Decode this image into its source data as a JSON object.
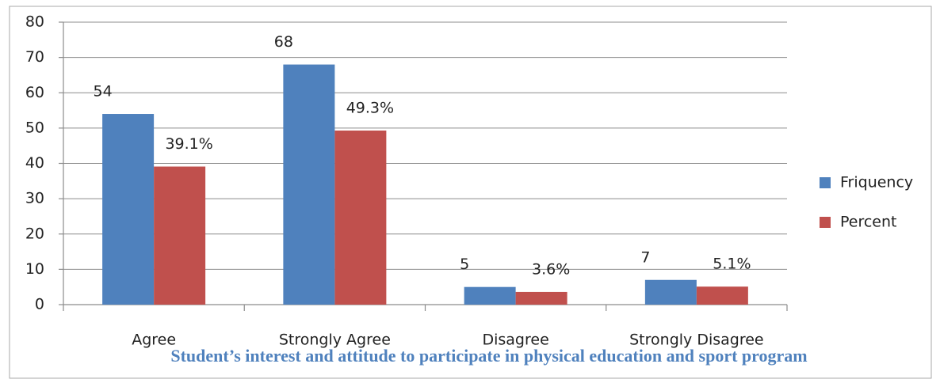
{
  "chart_data": {
    "type": "bar",
    "title": "Student’s interest and attitude to participate in physical education and sport program",
    "categories": [
      "Agree",
      "Strongly Agree",
      "Disagree",
      "Strongly Disagree"
    ],
    "series": [
      {
        "name": "Friquency",
        "color": "#4f81bd",
        "values": [
          54,
          68,
          5,
          7
        ]
      },
      {
        "name": "Percent",
        "color": "#c0504d",
        "values": [
          39.1,
          49.3,
          3.6,
          5.1
        ],
        "value_labels": [
          "39.1%",
          "49.3%",
          "3.6%",
          "5.1%"
        ]
      }
    ],
    "ylim": [
      0,
      80
    ],
    "yticks": [
      0,
      10,
      20,
      30,
      40,
      50,
      60,
      70,
      80
    ],
    "grid": true,
    "legend": "right"
  }
}
